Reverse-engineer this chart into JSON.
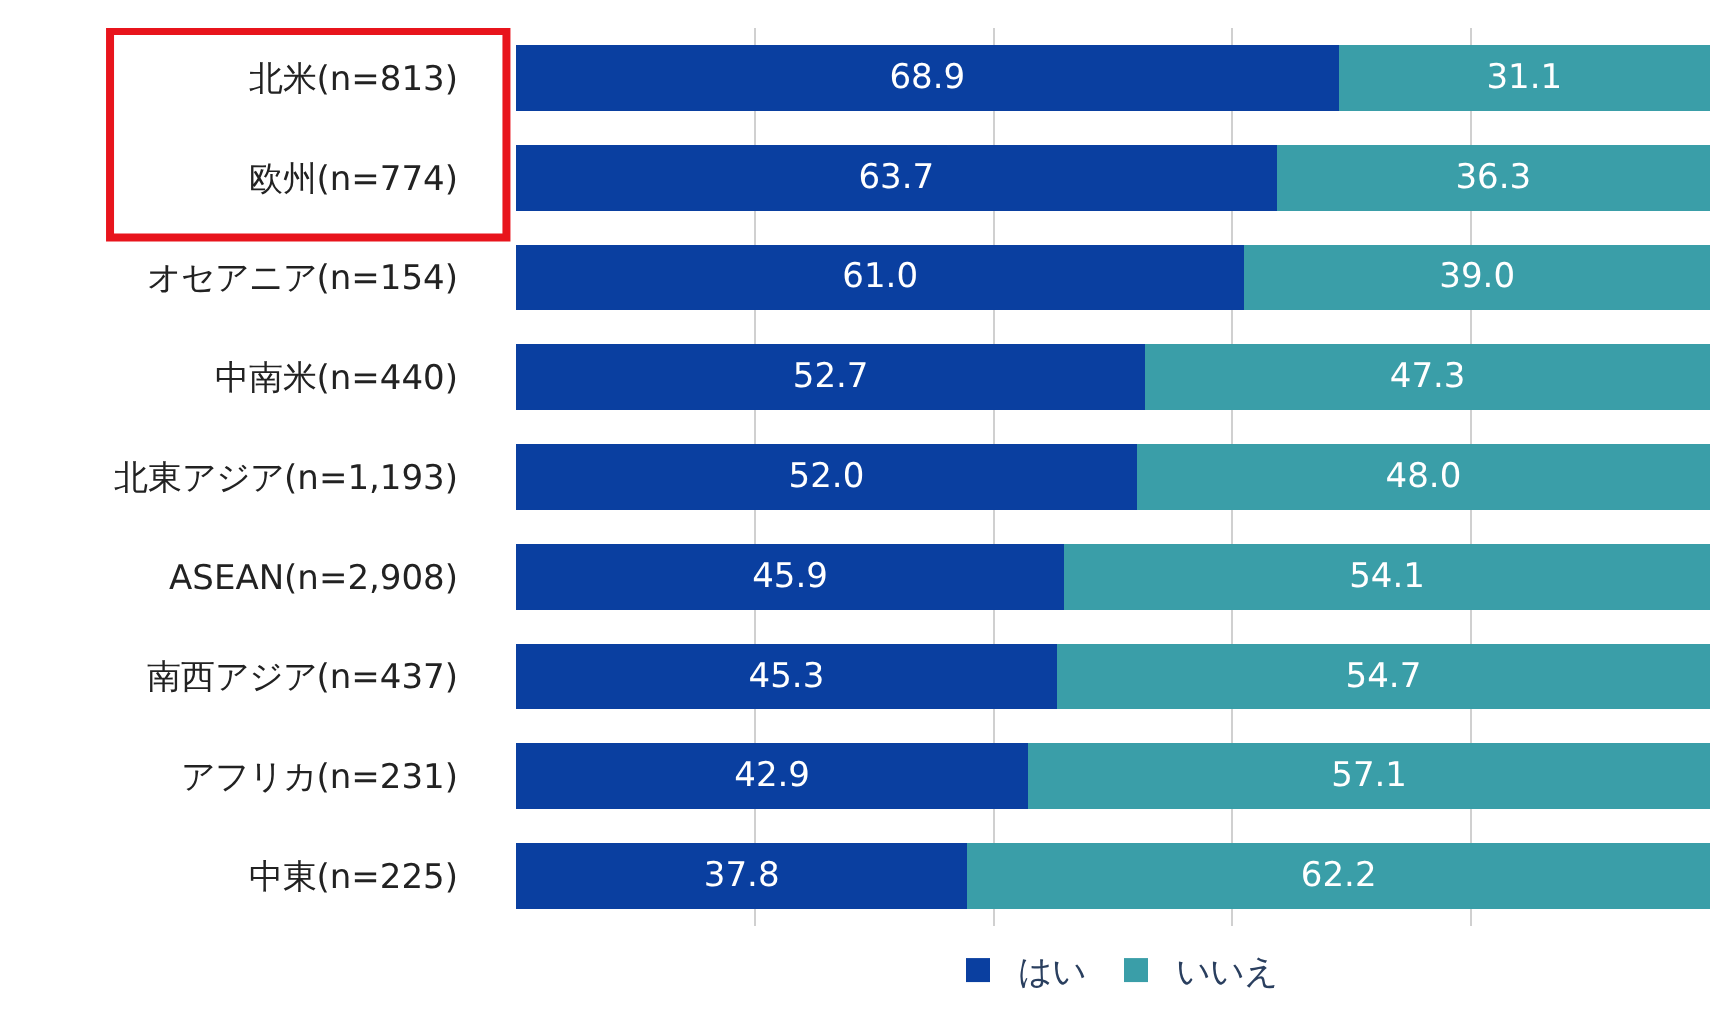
{
  "chart_data": {
    "type": "bar",
    "orientation": "horizontal",
    "stacked": true,
    "categories": [
      "北米(n=813)",
      "欧州(n=774)",
      "オセアニア(n=154)",
      "中南米(n=440)",
      "北東アジア(n=1,193)",
      "ASEAN(n=2,908)",
      "南西アジア(n=437)",
      "アフリカ(n=231)",
      "中東(n=225)"
    ],
    "series": [
      {
        "name": "はい",
        "color": "#0a3fa0",
        "values": [
          68.9,
          63.7,
          61.0,
          52.7,
          52.0,
          45.9,
          45.3,
          42.9,
          37.8
        ],
        "value_labels": [
          "68.9",
          "63.7",
          "61.0",
          "52.7",
          "52.0",
          "45.9",
          "45.3",
          "42.9",
          "37.8"
        ]
      },
      {
        "name": "いいえ",
        "color": "#3a9ea8",
        "values": [
          31.1,
          36.3,
          39.0,
          47.3,
          48.0,
          54.1,
          54.7,
          57.1,
          62.2
        ],
        "value_labels": [
          "31.1",
          "36.3",
          "39.0",
          "47.3",
          "48.0",
          "54.1",
          "54.7",
          "57.1",
          "62.2"
        ]
      }
    ],
    "xlim": [
      0,
      100
    ],
    "tick_labels": "y",
    "grid": "x",
    "legend": "bottom"
  }
}
